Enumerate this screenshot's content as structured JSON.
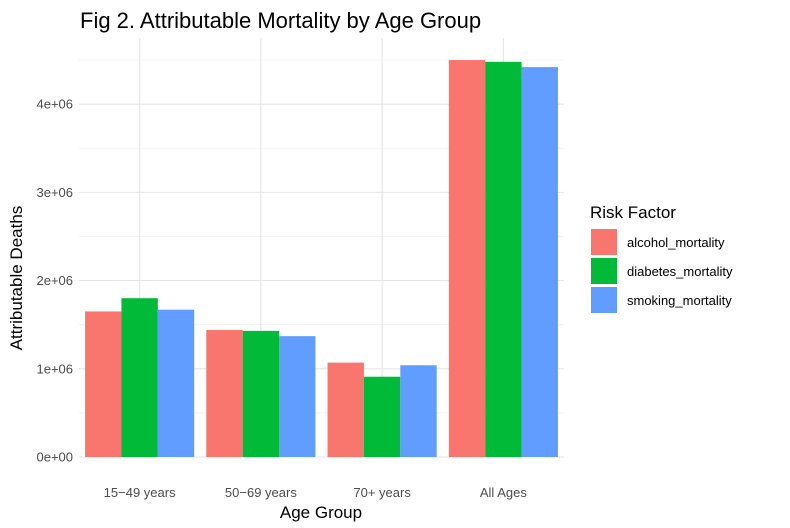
{
  "chart_data": {
    "type": "bar",
    "title": "Fig 2. Attributable Mortality by Age Group",
    "xlabel": "Age Group",
    "ylabel": "Attributable Deaths",
    "categories": [
      "15−49 years",
      "50−69 years",
      "70+ years",
      "All Ages"
    ],
    "series": [
      {
        "name": "alcohol_mortality",
        "color": "#F8766D",
        "values": [
          1650000,
          1440000,
          1070000,
          4500000
        ]
      },
      {
        "name": "diabetes_mortality",
        "color": "#00BA38",
        "values": [
          1800000,
          1430000,
          910000,
          4480000
        ]
      },
      {
        "name": "smoking_mortality",
        "color": "#619CFF",
        "values": [
          1670000,
          1370000,
          1040000,
          4420000
        ]
      }
    ],
    "ylim": [
      0,
      4750000
    ],
    "yticks": [
      0,
      1000000,
      2000000,
      3000000,
      4000000
    ],
    "ytick_labels": [
      "0e+00",
      "1e+06",
      "2e+06",
      "3e+06",
      "4e+06"
    ],
    "legend_title": "Risk Factor",
    "legend_position": "right",
    "grid": true
  }
}
